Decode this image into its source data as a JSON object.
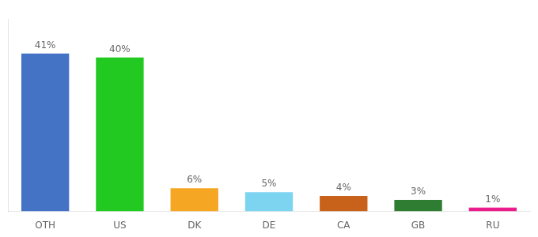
{
  "chart_data": {
    "type": "bar",
    "categories": [
      "OTH",
      "US",
      "DK",
      "DE",
      "CA",
      "GB",
      "RU"
    ],
    "values": [
      41,
      40,
      6,
      5,
      4,
      3,
      1
    ],
    "value_labels": [
      "41%",
      "40%",
      "6%",
      "5%",
      "4%",
      "3%",
      "1%"
    ],
    "colors": [
      "#4472c4",
      "#21c921",
      "#f5a623",
      "#7dd4f0",
      "#c8621a",
      "#2e7d32",
      "#e91e8c"
    ],
    "ylim": [
      0,
      50
    ],
    "grid": false,
    "data_labels": true,
    "tick_labels": "x"
  }
}
